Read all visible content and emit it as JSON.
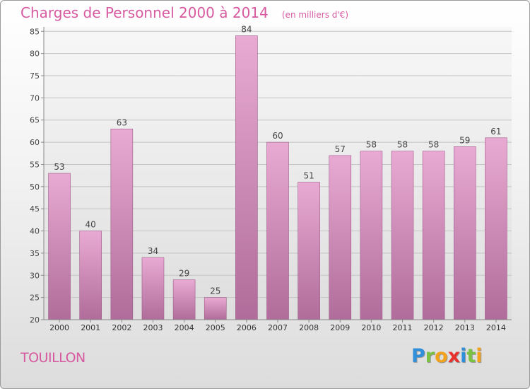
{
  "chart_data": {
    "type": "bar",
    "title": "Charges de Personnel 2000 à 2014",
    "subtitle": "(en milliers d'€)",
    "categories": [
      "2000",
      "2001",
      "2002",
      "2003",
      "2004",
      "2005",
      "2006",
      "2007",
      "2008",
      "2009",
      "2010",
      "2011",
      "2012",
      "2013",
      "2014"
    ],
    "values": [
      53,
      40,
      63,
      34,
      29,
      25,
      84,
      60,
      51,
      57,
      58,
      58,
      58,
      59,
      61
    ],
    "ylim": [
      20,
      86
    ],
    "yticks": [
      20,
      25,
      30,
      35,
      40,
      45,
      50,
      55,
      60,
      65,
      70,
      75,
      80,
      85
    ],
    "grid": true,
    "data_labels": true,
    "colors": {
      "bar_top": "#e8aad2",
      "bar_bottom": "#b06c9a",
      "text": "#d75aa0"
    }
  },
  "footer": {
    "city": "TOUILLON",
    "brand_letters": [
      {
        "ch": "P",
        "color": "#2f8fd8"
      },
      {
        "ch": "r",
        "color": "#7cc242"
      },
      {
        "ch": "o",
        "color": "#f2a21b"
      },
      {
        "ch": "x",
        "color": "#e8312d"
      },
      {
        "ch": "i",
        "color": "#2f8fd8"
      },
      {
        "ch": "t",
        "color": "#7cc242"
      },
      {
        "ch": "i",
        "color": "#f2a21b"
      }
    ]
  }
}
